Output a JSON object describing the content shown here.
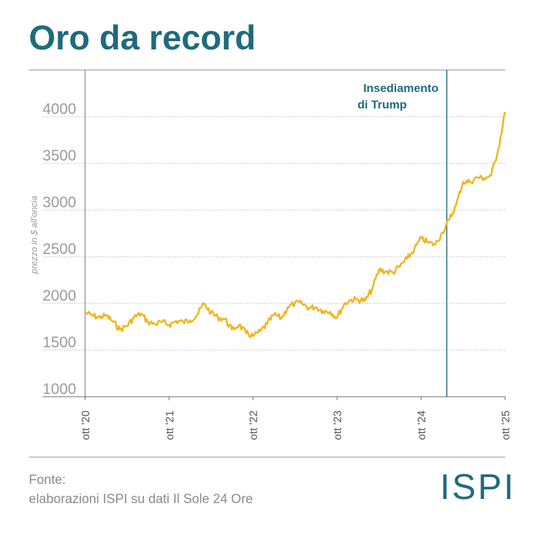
{
  "title": "Oro da record",
  "source": {
    "line1": "Fonte:",
    "line2": "elaborazioni ISPI su dati Il Sole 24 Ore"
  },
  "logo": "ISPI",
  "colors": {
    "line": "#f2b418",
    "accent": "#1f6b7d",
    "grid": "#b5b5b5"
  },
  "chart_data": {
    "type": "line",
    "title": "Oro da record",
    "ylabel": "prezzo in $ all'oncia",
    "ylim": [
      1000,
      4500
    ],
    "yticks": [
      1000,
      1500,
      2000,
      2500,
      3000,
      3500,
      4000
    ],
    "xticks": [
      {
        "label": "ott '20",
        "x": "2020-10"
      },
      {
        "label": "ott '21",
        "x": "2021-10"
      },
      {
        "label": "ott '22",
        "x": "2022-10"
      },
      {
        "label": "ott '23",
        "x": "2023-10"
      },
      {
        "label": "ott '24",
        "x": "2024-10"
      },
      {
        "label": "ott '25",
        "x": "2025-10"
      }
    ],
    "annotation": {
      "line1": "Insediamento",
      "line2": "di Trump",
      "x": "2025-01-20"
    },
    "series": [
      {
        "points": [
          [
            "2020-10",
            1900
          ],
          [
            "2020-11",
            1870
          ],
          [
            "2020-12",
            1850
          ],
          [
            "2021-01",
            1870
          ],
          [
            "2021-02",
            1800
          ],
          [
            "2021-03",
            1720
          ],
          [
            "2021-04",
            1760
          ],
          [
            "2021-05",
            1850
          ],
          [
            "2021-06",
            1890
          ],
          [
            "2021-07",
            1800
          ],
          [
            "2021-08",
            1780
          ],
          [
            "2021-09",
            1800
          ],
          [
            "2021-10",
            1770
          ],
          [
            "2021-11",
            1810
          ],
          [
            "2021-12",
            1800
          ],
          [
            "2022-01",
            1820
          ],
          [
            "2022-02",
            1880
          ],
          [
            "2022-03",
            2000
          ],
          [
            "2022-04",
            1900
          ],
          [
            "2022-05",
            1850
          ],
          [
            "2022-06",
            1830
          ],
          [
            "2022-07",
            1720
          ],
          [
            "2022-08",
            1770
          ],
          [
            "2022-09",
            1680
          ],
          [
            "2022-10",
            1650
          ],
          [
            "2022-11",
            1700
          ],
          [
            "2022-12",
            1780
          ],
          [
            "2023-01",
            1880
          ],
          [
            "2023-02",
            1840
          ],
          [
            "2023-03",
            1960
          ],
          [
            "2023-04",
            2000
          ],
          [
            "2023-05",
            2000
          ],
          [
            "2023-06",
            1950
          ],
          [
            "2023-07",
            1960
          ],
          [
            "2023-08",
            1920
          ],
          [
            "2023-09",
            1910
          ],
          [
            "2023-10",
            1850
          ],
          [
            "2023-11",
            1990
          ],
          [
            "2023-12",
            2040
          ],
          [
            "2024-01",
            2040
          ],
          [
            "2024-02",
            2030
          ],
          [
            "2024-03",
            2150
          ],
          [
            "2024-04",
            2360
          ],
          [
            "2024-05",
            2340
          ],
          [
            "2024-06",
            2330
          ],
          [
            "2024-07",
            2400
          ],
          [
            "2024-08",
            2480
          ],
          [
            "2024-09",
            2580
          ],
          [
            "2024-10",
            2700
          ],
          [
            "2024-11",
            2650
          ],
          [
            "2024-12",
            2630
          ],
          [
            "2025-01",
            2760
          ],
          [
            "2025-02",
            2900
          ],
          [
            "2025-03",
            3050
          ],
          [
            "2025-04",
            3300
          ],
          [
            "2025-05",
            3300
          ],
          [
            "2025-06",
            3350
          ],
          [
            "2025-07",
            3340
          ],
          [
            "2025-08",
            3370
          ],
          [
            "2025-09",
            3650
          ],
          [
            "2025-10",
            4050
          ]
        ]
      }
    ]
  }
}
